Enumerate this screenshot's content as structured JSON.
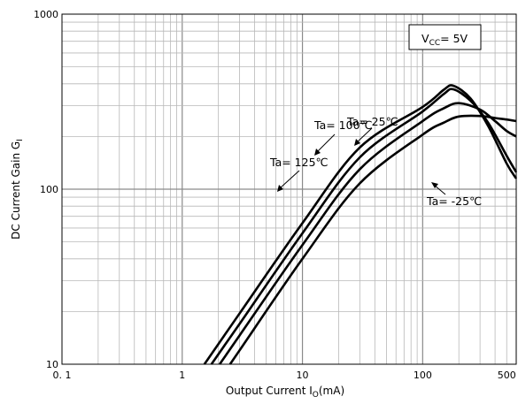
{
  "chart_data": {
    "type": "line",
    "x_scale": "log",
    "y_scale": "log",
    "xlim": [
      0.1,
      600
    ],
    "ylim": [
      10,
      1000
    ],
    "grid": true,
    "x_ticks": [
      {
        "value": 0.1,
        "label": "0. 1"
      },
      {
        "value": 1,
        "label": "1"
      },
      {
        "value": 10,
        "label": "10"
      },
      {
        "value": 100,
        "label": "100"
      },
      {
        "value": 500,
        "label": "500"
      }
    ],
    "y_ticks": [
      {
        "value": 10,
        "label": "10"
      },
      {
        "value": 100,
        "label": "100"
      },
      {
        "value": 1000,
        "label": "1000"
      }
    ],
    "xlabel": {
      "main": "Output Current  I",
      "sub": "O",
      "tail": "(mA)"
    },
    "ylabel": {
      "main": "DC Current Gain  G",
      "sub": "I"
    },
    "condition": {
      "main": "V",
      "sub": "CC",
      "tail": "= 5V"
    },
    "series": [
      {
        "name": "Ta= 125℃",
        "x": [
          1.53,
          3,
          10,
          30,
          100,
          150,
          180,
          250,
          350,
          500,
          600
        ],
        "y": [
          10,
          19.5,
          64,
          173,
          295,
          370,
          390,
          330,
          230,
          140,
          115
        ]
      },
      {
        "name": "Ta= 100℃",
        "x": [
          1.75,
          3,
          10,
          30,
          100,
          150,
          180,
          250,
          350,
          500,
          600
        ],
        "y": [
          10,
          17,
          56,
          152,
          278,
          350,
          372,
          320,
          240,
          155,
          125
        ]
      },
      {
        "name": "Ta= 25℃",
        "x": [
          2.05,
          3,
          10,
          30,
          100,
          150,
          200,
          300,
          400,
          500,
          600
        ],
        "y": [
          10,
          14.6,
          48,
          130,
          245,
          290,
          310,
          285,
          245,
          215,
          200
        ]
      },
      {
        "name": "Ta= -25℃",
        "x": [
          2.5,
          3,
          10,
          30,
          100,
          150,
          200,
          300,
          400,
          500,
          600
        ],
        "y": [
          10,
          12,
          40,
          108,
          205,
          240,
          260,
          262,
          255,
          250,
          245
        ]
      }
    ],
    "annotations": [
      {
        "text": "Ta= 25℃",
        "series": "Ta= 25℃"
      },
      {
        "text": "Ta= 100℃",
        "series": "Ta= 100℃"
      },
      {
        "text": "Ta= 125℃",
        "series": "Ta= 125℃"
      },
      {
        "text": "Ta= -25℃",
        "series": "Ta= -25℃"
      }
    ],
    "colors": {
      "line": "#000000",
      "grid": "#b0b0b0",
      "frame": "#000000"
    }
  }
}
